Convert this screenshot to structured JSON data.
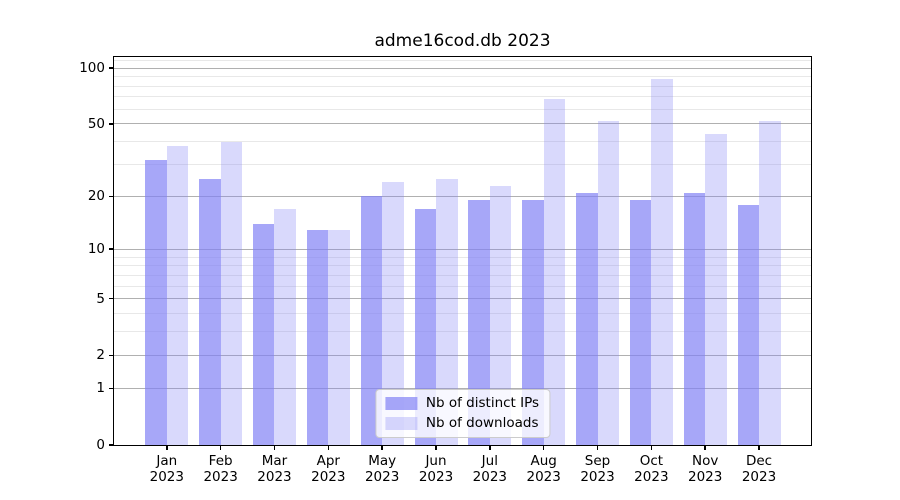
{
  "figure": {
    "title": "adme16cod.db 2023"
  },
  "chart_data": {
    "type": "bar",
    "title": "adme16cod.db 2023",
    "categories": [
      "Jan",
      "Feb",
      "Mar",
      "Apr",
      "May",
      "Jun",
      "Jul",
      "Aug",
      "Sep",
      "Oct",
      "Nov",
      "Dec"
    ],
    "category_year": "2023",
    "series": [
      {
        "name": "Nb of distinct IPs",
        "color": "rgba(130,130,245,0.7)",
        "values": [
          32,
          25,
          14,
          13,
          20,
          17,
          19,
          19,
          21,
          19,
          21,
          18
        ]
      },
      {
        "name": "Nb of downloads",
        "color": "rgba(130,130,245,0.3)",
        "values": [
          38,
          40,
          17,
          13,
          24,
          25,
          23,
          68,
          52,
          88,
          44,
          52
        ]
      }
    ],
    "y_scale": "log10(1+x)",
    "y_major_ticks": [
      0,
      1,
      2,
      5,
      10,
      20,
      50,
      100
    ],
    "y_minor_ticks": [
      3,
      4,
      6,
      7,
      8,
      9,
      30,
      40,
      60,
      70,
      80,
      90,
      110
    ],
    "ylim": [
      0,
      115
    ],
    "xlabel": "",
    "ylabel": "",
    "grid": true,
    "legend_position": "lower center"
  },
  "colors": {
    "bar_distinct_ips": "rgba(130,130,245,0.7)",
    "bar_downloads": "rgba(130,130,245,0.3)",
    "major_grid": "#b0b0b0",
    "minor_grid": "#e8e8e8",
    "spine": "#000000",
    "background": "#ffffff",
    "legend_background": "rgba(255,255,255,0.8)",
    "legend_border": "#cccccc"
  }
}
